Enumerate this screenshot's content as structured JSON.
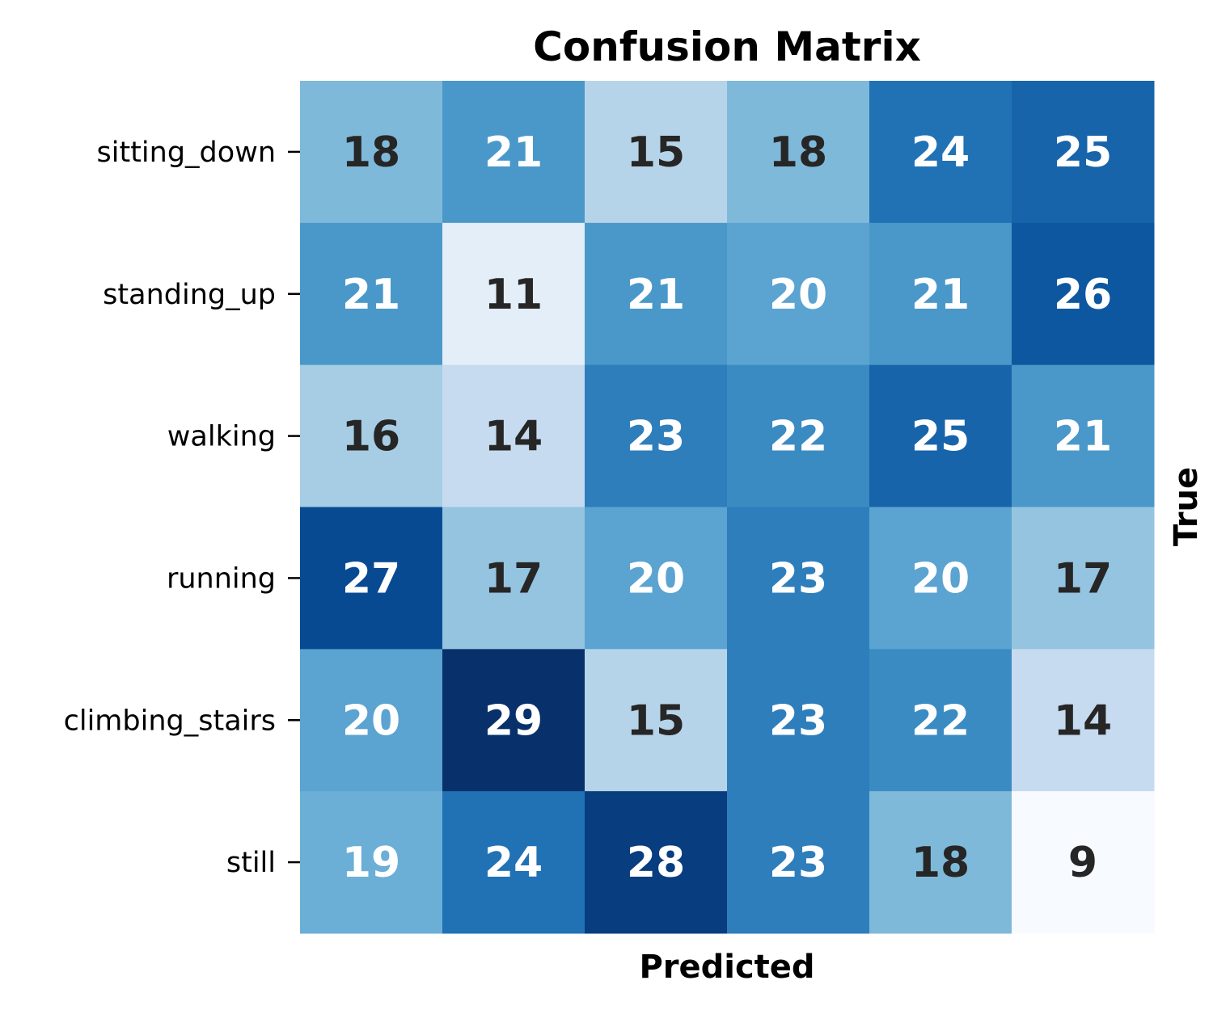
{
  "chart_data": {
    "type": "heatmap",
    "title": "Confusion Matrix",
    "xlabel": "Predicted",
    "ylabel": "True",
    "row_labels": [
      "sitting_down",
      "standing_up",
      "walking",
      "running",
      "climbing_stairs",
      "still"
    ],
    "col_labels": [],
    "values": [
      [
        18,
        21,
        15,
        18,
        24,
        25
      ],
      [
        21,
        11,
        21,
        20,
        21,
        26
      ],
      [
        16,
        14,
        23,
        22,
        25,
        21
      ],
      [
        27,
        17,
        20,
        23,
        20,
        17
      ],
      [
        20,
        29,
        15,
        23,
        22,
        14
      ],
      [
        19,
        24,
        28,
        23,
        18,
        9
      ]
    ],
    "colormap": "Blues",
    "value_range": [
      9,
      29
    ],
    "colorbar": false,
    "annotation_colors": {
      "light_cell": "#262626",
      "dark_cell": "#ffffff"
    }
  }
}
